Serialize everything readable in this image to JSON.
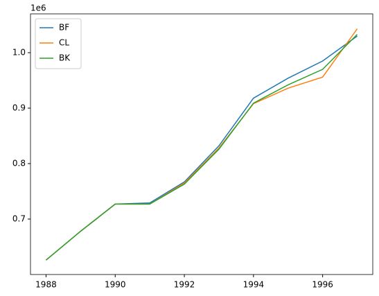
{
  "chart_data": {
    "type": "line",
    "offset_label": "1e6",
    "x": [
      1988,
      1989,
      1990,
      1991,
      1992,
      1993,
      1994,
      1995,
      1996,
      1997
    ],
    "series": [
      {
        "name": "BF",
        "color": "#1f77b4",
        "values": [
          626000,
          678000,
          727000,
          729000,
          767000,
          832000,
          918000,
          954000,
          985000,
          1030000
        ]
      },
      {
        "name": "CL",
        "color": "#ff7f0e",
        "values": [
          626000,
          678000,
          727000,
          727000,
          765000,
          828000,
          908000,
          936000,
          956000,
          1043000
        ]
      },
      {
        "name": "BK",
        "color": "#2ca02c",
        "values": [
          626000,
          678000,
          727000,
          727000,
          763000,
          826000,
          909000,
          942000,
          970000,
          1033000
        ]
      }
    ],
    "xlim": [
      1987.55,
      1997.45
    ],
    "xticks": [
      1988,
      1990,
      1992,
      1994,
      1996
    ],
    "ylim": [
      600000,
      1070000
    ],
    "yticks": [
      {
        "value": 700000,
        "label": "0.7"
      },
      {
        "value": 800000,
        "label": "0.8"
      },
      {
        "value": 900000,
        "label": "0.9"
      },
      {
        "value": 1000000,
        "label": "1.0"
      }
    ],
    "legend": "upper left",
    "grid": false
  }
}
